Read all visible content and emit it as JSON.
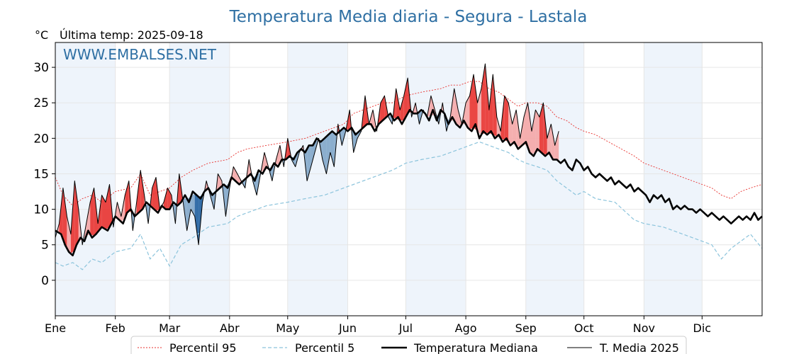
{
  "title": "Temperatura Media diaria - Segura - Lastala",
  "unit_label": "°C",
  "last_temp_label": "Última temp: 2025-09-18",
  "watermark": "WWW.EMBALSES.NET",
  "colors": {
    "title": "#2e6fa3",
    "p95": "#e8322f",
    "p5": "#8cc4dc",
    "above_fill": "#f4a6a6",
    "above_fill_strong": "#e8322f",
    "below_fill": "#7fa6c9",
    "below_fill_strong": "#1f5f9e",
    "band": "#eef4fb"
  },
  "chart_data": {
    "type": "line",
    "x_unit": "day_of_year",
    "months": [
      "Ene",
      "Feb",
      "Mar",
      "Abr",
      "May",
      "Jun",
      "Jul",
      "Ago",
      "Sep",
      "Oct",
      "Nov",
      "Dic"
    ],
    "month_start_days": [
      1,
      32,
      60,
      91,
      121,
      152,
      182,
      213,
      244,
      274,
      305,
      335
    ],
    "yticks": [
      0,
      5,
      10,
      15,
      20,
      25,
      30
    ],
    "ylim": [
      -5,
      33.5
    ],
    "xlim": [
      1,
      366
    ],
    "grid": true,
    "legend_position": "bottom-center",
    "legend": [
      {
        "key": "p95",
        "label": "Percentil 95"
      },
      {
        "key": "p5",
        "label": "Percentil 5"
      },
      {
        "key": "median",
        "label": "Temperatura Mediana"
      },
      {
        "key": "current",
        "label": "T. Media 2025"
      }
    ],
    "series": [
      {
        "name": "Percentil 95",
        "key": "p95",
        "x": [
          1,
          5,
          10,
          15,
          20,
          25,
          32,
          40,
          45,
          50,
          55,
          60,
          66,
          72,
          80,
          90,
          95,
          100,
          110,
          121,
          130,
          140,
          150,
          155,
          160,
          165,
          170,
          175,
          182,
          190,
          200,
          205,
          210,
          215,
          220,
          225,
          230,
          235,
          240,
          244,
          250,
          255,
          260,
          265,
          270,
          274,
          280,
          290,
          300,
          305,
          315,
          320,
          330,
          340,
          345,
          350,
          355,
          360,
          366
        ],
        "y": [
          14.5,
          12,
          10.5,
          11.5,
          12,
          11,
          12.5,
          13,
          15,
          12,
          12.5,
          13,
          14.5,
          15.5,
          16.5,
          17,
          18,
          18.5,
          19,
          19.5,
          20,
          21,
          22,
          23.5,
          24,
          24.5,
          25,
          25,
          26,
          26.5,
          27,
          27.5,
          27.5,
          28,
          28,
          27,
          26.5,
          25.5,
          24.5,
          25,
          25,
          24.5,
          23,
          22.5,
          21.5,
          21,
          20.5,
          19,
          17.5,
          16.5,
          15.5,
          15,
          14,
          13,
          12,
          11.5,
          12.5,
          13,
          13.5
        ]
      },
      {
        "name": "Percentil 5",
        "key": "p5",
        "x": [
          1,
          5,
          10,
          15,
          20,
          25,
          32,
          40,
          45,
          50,
          55,
          60,
          66,
          72,
          80,
          90,
          95,
          100,
          110,
          121,
          130,
          140,
          150,
          155,
          160,
          165,
          170,
          175,
          182,
          190,
          200,
          205,
          210,
          215,
          220,
          225,
          230,
          235,
          240,
          244,
          250,
          255,
          260,
          265,
          270,
          274,
          280,
          290,
          300,
          305,
          315,
          320,
          330,
          340,
          345,
          350,
          355,
          360,
          366
        ],
        "y": [
          2.5,
          2,
          2.5,
          1.5,
          3,
          2.5,
          4,
          4.5,
          6.5,
          3,
          4.5,
          2,
          5,
          6,
          7.5,
          8,
          9,
          9.5,
          10.5,
          11,
          11.5,
          12,
          13,
          13.5,
          14,
          14.5,
          15,
          15.5,
          16.5,
          17,
          17.5,
          18,
          18.5,
          19,
          19.5,
          19,
          18.5,
          18,
          17,
          16.5,
          16,
          15.5,
          14,
          13,
          12,
          12.5,
          11.5,
          11,
          8.5,
          8,
          7.5,
          7,
          6,
          5,
          3,
          4.5,
          5.5,
          6.5,
          4.5
        ]
      },
      {
        "name": "Temperatura Mediana",
        "key": "median",
        "x": [
          1,
          4,
          6,
          8,
          10,
          12,
          14,
          16,
          18,
          20,
          22,
          25,
          28,
          30,
          32,
          34,
          36,
          38,
          40,
          42,
          44,
          46,
          48,
          50,
          52,
          54,
          56,
          58,
          60,
          62,
          64,
          66,
          68,
          70,
          72,
          74,
          76,
          78,
          80,
          82,
          84,
          86,
          88,
          90,
          92,
          94,
          96,
          98,
          100,
          102,
          104,
          106,
          108,
          110,
          112,
          114,
          116,
          118,
          120,
          122,
          124,
          126,
          128,
          130,
          132,
          134,
          136,
          138,
          140,
          142,
          144,
          146,
          148,
          150,
          152,
          154,
          156,
          158,
          160,
          162,
          164,
          166,
          168,
          170,
          172,
          174,
          176,
          178,
          180,
          182,
          184,
          186,
          188,
          190,
          192,
          194,
          196,
          198,
          200,
          202,
          204,
          206,
          208,
          210,
          212,
          214,
          216,
          218,
          220,
          222,
          224,
          226,
          228,
          230,
          232,
          234,
          236,
          238,
          240,
          242,
          244,
          246,
          248,
          250,
          252,
          254,
          256,
          258,
          260,
          262,
          264,
          266,
          268,
          270,
          272,
          274,
          276,
          278,
          280,
          282,
          284,
          286,
          288,
          290,
          292,
          294,
          296,
          298,
          300,
          302,
          304,
          306,
          308,
          310,
          312,
          314,
          316,
          318,
          320,
          322,
          324,
          326,
          328,
          330,
          332,
          334,
          336,
          338,
          340,
          342,
          344,
          346,
          348,
          350,
          352,
          354,
          356,
          358,
          360,
          362,
          364,
          366
        ],
        "y": [
          7,
          6.5,
          5,
          4,
          3.5,
          5,
          6,
          5.5,
          7,
          6,
          6.5,
          7.5,
          7,
          8,
          9,
          8.5,
          8,
          9.5,
          10,
          9,
          9.5,
          10,
          11,
          10.5,
          10,
          9.5,
          10.5,
          10,
          10,
          11,
          10.5,
          11,
          12,
          11,
          12.5,
          12,
          11.5,
          12.5,
          13,
          12,
          12.5,
          13,
          13.5,
          13,
          14.5,
          14,
          13.5,
          14,
          14.5,
          15,
          14,
          15.5,
          15,
          16,
          15.5,
          16.5,
          16,
          17,
          17,
          17.5,
          17,
          18,
          18.5,
          18,
          19,
          19,
          20,
          19.5,
          20,
          20.5,
          21,
          20.5,
          21,
          21.5,
          21,
          21.5,
          20.5,
          21,
          21.5,
          22,
          22,
          21,
          22,
          22.5,
          23,
          23.5,
          22.5,
          23,
          22,
          23,
          24,
          23.5,
          23.5,
          24,
          23.5,
          22.5,
          24,
          22.5,
          24,
          23.5,
          22,
          23,
          22,
          21.5,
          22.5,
          21.5,
          21,
          22,
          20,
          21,
          20.5,
          21,
          20,
          20.5,
          19.5,
          20,
          19,
          19.5,
          18.5,
          19,
          19.5,
          18,
          17.5,
          18.5,
          18,
          17.5,
          18,
          17,
          17,
          16.5,
          17,
          16,
          15.5,
          17,
          16.5,
          15.5,
          16,
          15,
          14.5,
          15,
          14.5,
          14,
          14.5,
          13.5,
          14,
          13.5,
          13,
          13.5,
          12.5,
          13,
          12.5,
          12,
          11,
          12,
          11.5,
          12,
          11,
          11.5,
          10,
          10.5,
          10,
          10.5,
          10,
          10,
          9.5,
          10,
          9.5,
          9,
          9.5,
          9,
          8.5,
          9,
          8.5,
          8,
          8.5,
          9,
          8.5,
          9,
          8.5,
          9.5,
          8.5,
          9
        ]
      },
      {
        "name": "T. Media 2025",
        "key": "current",
        "x": [
          1,
          3,
          5,
          7,
          9,
          11,
          13,
          15,
          17,
          19,
          21,
          23,
          25,
          27,
          29,
          31,
          33,
          35,
          37,
          39,
          41,
          43,
          45,
          47,
          49,
          51,
          53,
          55,
          57,
          59,
          61,
          63,
          65,
          67,
          69,
          71,
          73,
          75,
          77,
          79,
          81,
          83,
          85,
          87,
          89,
          91,
          93,
          95,
          97,
          99,
          101,
          103,
          105,
          107,
          109,
          111,
          113,
          115,
          117,
          119,
          121,
          123,
          125,
          127,
          129,
          131,
          133,
          135,
          137,
          139,
          141,
          143,
          145,
          147,
          149,
          151,
          153,
          155,
          157,
          159,
          161,
          163,
          165,
          167,
          169,
          171,
          173,
          175,
          177,
          179,
          181,
          183,
          185,
          187,
          189,
          191,
          193,
          195,
          197,
          199,
          201,
          203,
          205,
          207,
          209,
          211,
          213,
          215,
          217,
          219,
          221,
          223,
          225,
          227,
          229,
          231,
          233,
          235,
          237,
          239,
          241,
          243,
          245,
          247,
          249,
          251,
          253,
          255,
          257,
          259,
          261
        ],
        "y": [
          6,
          8,
          13,
          9,
          6.5,
          14,
          10,
          5,
          8,
          11,
          13,
          8,
          12,
          11,
          13.5,
          7.5,
          11,
          9,
          12,
          14,
          7,
          11,
          15.5,
          12,
          8,
          13,
          14.5,
          10,
          11,
          13,
          12,
          8,
          15,
          11,
          7,
          10,
          9,
          5,
          11,
          14,
          12,
          10,
          15,
          14,
          9,
          13,
          16,
          15,
          14,
          13,
          17,
          14,
          12,
          15,
          18,
          16,
          14,
          17,
          19,
          16,
          20,
          17,
          16,
          18,
          19,
          14,
          16,
          18,
          20,
          17,
          15,
          18,
          16,
          22,
          19,
          21,
          24,
          18,
          20,
          21,
          26,
          22,
          24,
          21,
          25,
          26,
          23,
          22,
          27,
          24,
          26,
          28.5,
          23,
          25,
          22,
          24,
          23,
          26,
          24,
          22,
          25,
          21,
          23,
          27,
          24,
          22,
          25,
          26,
          29,
          25,
          27,
          30.5,
          24,
          29,
          23,
          21,
          26,
          25,
          22,
          24,
          20,
          23,
          25,
          21,
          24,
          23,
          25,
          20,
          22,
          19,
          21
        ]
      }
    ]
  }
}
